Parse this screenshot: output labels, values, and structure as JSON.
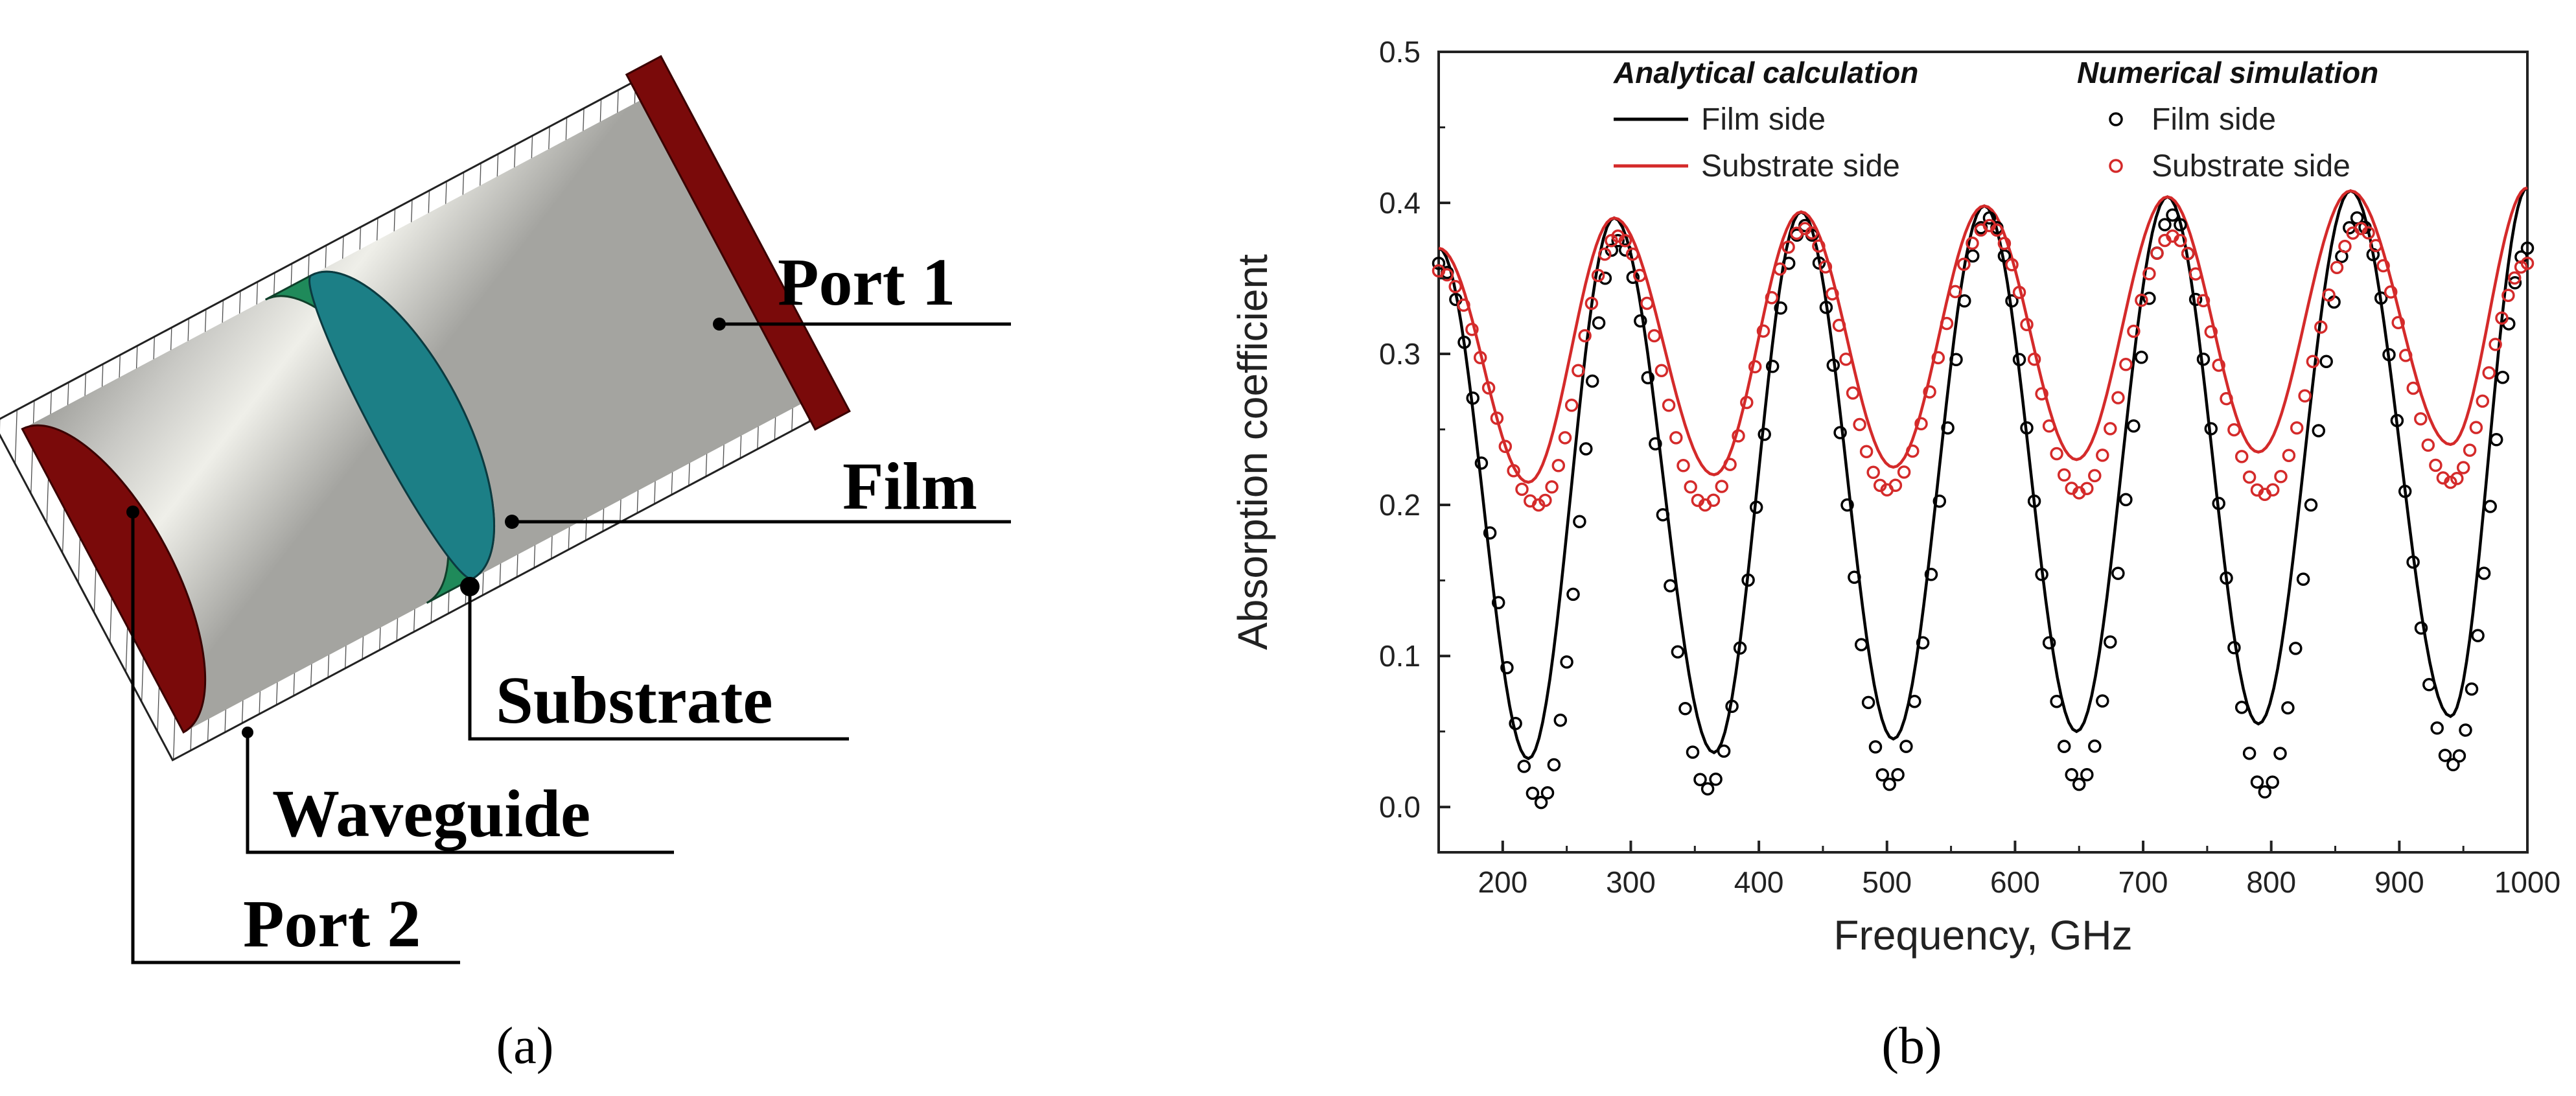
{
  "panel_a": {
    "caption": "(a)",
    "labels": {
      "port1": "Port 1",
      "film": "Film",
      "substrate": "Substrate",
      "waveguide": "Waveguide",
      "port2": "Port 2"
    },
    "colors": {
      "port": "#7a0a0a",
      "substrate": "#1f8a5a",
      "film": "#1c7f86",
      "waveguide": "#b9b9b5"
    }
  },
  "panel_b": {
    "caption": "(b)"
  },
  "chart_data": {
    "type": "line",
    "title": "",
    "xlabel": "Frequency, GHz",
    "ylabel": "Absorption coefficient",
    "xlim": [
      150,
      1000
    ],
    "ylim": [
      -0.03,
      0.5
    ],
    "xticks": [
      "200",
      "300",
      "400",
      "500",
      "600",
      "700",
      "800",
      "900",
      "1000"
    ],
    "yticks": [
      "0.0",
      "0.1",
      "0.2",
      "0.3",
      "0.4",
      "0.5"
    ],
    "legend": {
      "placement": "top",
      "group_analytical": "Analytical calculation",
      "group_numerical": "Numerical simulation",
      "film_label": "Film side",
      "substrate_label": "Substrate side"
    },
    "series": [
      {
        "name": "Film side",
        "group": "Analytical calculation",
        "style": "line",
        "color": "#000000",
        "peaks": [
          [
            287,
            0.39
          ],
          [
            433,
            0.394
          ],
          [
            576,
            0.398
          ],
          [
            719,
            0.404
          ],
          [
            862,
            0.408
          ]
        ],
        "minima": [
          [
            220,
            0.032
          ],
          [
            365,
            0.036
          ],
          [
            505,
            0.045
          ],
          [
            648,
            0.05
          ],
          [
            790,
            0.055
          ],
          [
            940,
            0.06
          ]
        ],
        "start": [
          150,
          0.37
        ],
        "end": [
          1000,
          0.41
        ]
      },
      {
        "name": "Substrate side",
        "group": "Analytical calculation",
        "style": "line",
        "color": "#d42a2a",
        "peaks": [
          [
            287,
            0.39
          ],
          [
            433,
            0.394
          ],
          [
            576,
            0.398
          ],
          [
            719,
            0.404
          ],
          [
            862,
            0.408
          ]
        ],
        "minima": [
          [
            220,
            0.215
          ],
          [
            365,
            0.22
          ],
          [
            505,
            0.225
          ],
          [
            648,
            0.23
          ],
          [
            790,
            0.235
          ],
          [
            940,
            0.24
          ]
        ],
        "start": [
          150,
          0.37
        ],
        "end": [
          1000,
          0.41
        ]
      },
      {
        "name": "Film side",
        "group": "Numerical simulation",
        "style": "markers",
        "color": "#000000",
        "peaks": [
          [
            290,
            0.375
          ],
          [
            436,
            0.385
          ],
          [
            580,
            0.39
          ],
          [
            723,
            0.392
          ],
          [
            867,
            0.39
          ]
        ],
        "minima": [
          [
            230,
            0.003
          ],
          [
            360,
            0.012
          ],
          [
            502,
            0.015
          ],
          [
            650,
            0.015
          ],
          [
            795,
            0.01
          ],
          [
            942,
            0.028
          ]
        ],
        "start": [
          150,
          0.36
        ],
        "end": [
          1000,
          0.37
        ]
      },
      {
        "name": "Substrate side",
        "group": "Numerical simulation",
        "style": "markers",
        "color": "#d42a2a",
        "peaks": [
          [
            290,
            0.378
          ],
          [
            436,
            0.383
          ],
          [
            580,
            0.385
          ],
          [
            723,
            0.378
          ],
          [
            870,
            0.383
          ]
        ],
        "minima": [
          [
            228,
            0.2
          ],
          [
            358,
            0.2
          ],
          [
            500,
            0.21
          ],
          [
            650,
            0.208
          ],
          [
            795,
            0.207
          ],
          [
            940,
            0.215
          ]
        ],
        "start": [
          150,
          0.355
        ],
        "end": [
          1000,
          0.36
        ]
      }
    ]
  }
}
